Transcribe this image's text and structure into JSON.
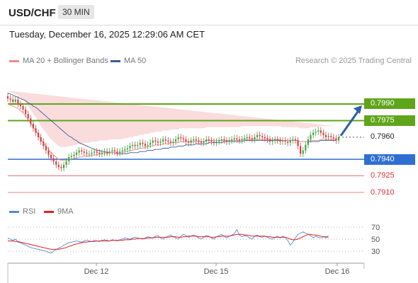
{
  "header": {
    "symbol": "USD/CHF",
    "timeframe": "30 MIN"
  },
  "datetime": "Tuesday, December 16, 2025 12:29:06 AM CET",
  "copyright": "Research © 2025 Trading Central",
  "legend": {
    "bb": {
      "label": "MA 20 + Bollinger Bands",
      "color": "#f08a8a"
    },
    "ma50": {
      "label": "MA 50",
      "color": "#3b5b9b"
    },
    "rsi": {
      "label": "RSI",
      "color": "#5b87d8"
    },
    "ma9": {
      "label": "9MA",
      "color": "#e02020"
    }
  },
  "colors": {
    "bullish": "#40a040",
    "bearish": "#d24040",
    "bb_fill": "#f8d0d0",
    "arrow": "#2b5faa"
  },
  "chart_data": [
    {
      "type": "candlestick",
      "x_tick_labels": [
        "Dec 12",
        "Dec 15",
        "Dec 16"
      ],
      "ylim": [
        0.79,
        0.8005
      ],
      "levels": [
        {
          "value": "0.7990",
          "kind": "resistance",
          "color": "#5fa51b"
        },
        {
          "value": "0.7975",
          "kind": "resistance",
          "color": "#5fa51b"
        },
        {
          "value": "0.7960",
          "kind": "current",
          "color": "#222222"
        },
        {
          "value": "0.7940",
          "kind": "support",
          "color": "#2f6fd3"
        },
        {
          "value": "0.7925",
          "kind": "support",
          "color": "#e06060"
        },
        {
          "value": "0.7910",
          "kind": "support",
          "color": "#e06060"
        }
      ],
      "close": [
        0.7995,
        0.7994,
        0.7992,
        0.7994,
        0.799,
        0.7988,
        0.7985,
        0.7981,
        0.7977,
        0.7972,
        0.7968,
        0.7964,
        0.796,
        0.7956,
        0.7952,
        0.7948,
        0.7944,
        0.7941,
        0.7938,
        0.7935,
        0.7933,
        0.7932,
        0.7935,
        0.7938,
        0.7942,
        0.7943,
        0.7944,
        0.7946,
        0.7948,
        0.7947,
        0.7946,
        0.7945,
        0.7945,
        0.7946,
        0.7947,
        0.7946,
        0.7945,
        0.7946,
        0.7947,
        0.7946,
        0.7947,
        0.7948,
        0.7947,
        0.7946,
        0.7947,
        0.7948,
        0.7949,
        0.795,
        0.7952,
        0.7953,
        0.7952,
        0.7953,
        0.7955,
        0.7954,
        0.7952,
        0.7953,
        0.7955,
        0.7957,
        0.7956,
        0.7955,
        0.7956,
        0.7958,
        0.7957,
        0.7956,
        0.7955,
        0.7956,
        0.7958,
        0.796,
        0.7959,
        0.7958,
        0.7956,
        0.7955,
        0.7957,
        0.7958,
        0.7957,
        0.7956,
        0.7955,
        0.7956,
        0.7958,
        0.7957,
        0.7956,
        0.7955,
        0.7956,
        0.7957,
        0.7958,
        0.7957,
        0.7956,
        0.7957,
        0.7958,
        0.7959,
        0.7958,
        0.7957,
        0.7958,
        0.7959,
        0.796,
        0.7959,
        0.7958,
        0.796,
        0.7962,
        0.7961,
        0.796,
        0.7959,
        0.7958,
        0.7956,
        0.7957,
        0.7958,
        0.7957,
        0.7956,
        0.7957,
        0.7956,
        0.7955,
        0.7957,
        0.7958,
        0.7957,
        0.7952,
        0.7945,
        0.7948,
        0.7953,
        0.7958,
        0.7962,
        0.7964,
        0.7965,
        0.7966,
        0.7964,
        0.7962,
        0.796,
        0.7961,
        0.796,
        0.7959,
        0.7957,
        0.796
      ],
      "ma20": [
        0.799,
        0.7989,
        0.7988,
        0.7987,
        0.7986,
        0.7984,
        0.7982,
        0.7979,
        0.7976,
        0.7973,
        0.7969,
        0.7966,
        0.7962,
        0.7958,
        0.7955,
        0.7952,
        0.7949,
        0.7946,
        0.7944,
        0.7942,
        0.794,
        0.7939,
        0.7939,
        0.7939,
        0.794,
        0.794,
        0.7941,
        0.7941,
        0.7942,
        0.7942,
        0.7943,
        0.7943,
        0.7943,
        0.7944,
        0.7944,
        0.7944,
        0.7945,
        0.7945,
        0.7945,
        0.7945,
        0.7946,
        0.7946,
        0.7946,
        0.7946,
        0.7946,
        0.7946,
        0.7947,
        0.7947,
        0.7948,
        0.7948,
        0.7949,
        0.7949,
        0.795,
        0.795,
        0.7951,
        0.7951,
        0.7952,
        0.7952,
        0.7953,
        0.7953,
        0.7953,
        0.7954,
        0.7954,
        0.7954,
        0.7955,
        0.7955,
        0.7955,
        0.7955,
        0.7956,
        0.7956,
        0.7956,
        0.7956,
        0.7956,
        0.7956,
        0.7956,
        0.7956,
        0.7956,
        0.7956,
        0.7957,
        0.7957,
        0.7957,
        0.7957,
        0.7957,
        0.7957,
        0.7957,
        0.7957,
        0.7957,
        0.7957,
        0.7957,
        0.7957,
        0.7957,
        0.7957,
        0.7958,
        0.7958,
        0.7958,
        0.7958,
        0.7958,
        0.7958,
        0.7958,
        0.7958,
        0.7958,
        0.7958,
        0.7958,
        0.7958,
        0.7958,
        0.7958,
        0.7958,
        0.7958,
        0.7957,
        0.7957,
        0.7957,
        0.7957,
        0.7957,
        0.7957,
        0.7957,
        0.7956,
        0.7956,
        0.7956,
        0.7956,
        0.7957,
        0.7957,
        0.7957,
        0.7957,
        0.7958,
        0.7958,
        0.7958,
        0.7958,
        0.7958,
        0.7958,
        0.7958
      ],
      "bb_width": 0.0012,
      "ma50": [
        0.8,
        0.7999,
        0.7998,
        0.7997,
        0.7996,
        0.7995,
        0.7994,
        0.7993,
        0.7991,
        0.799,
        0.7988,
        0.7987,
        0.7985,
        0.7983,
        0.7981,
        0.7979,
        0.7977,
        0.7975,
        0.7973,
        0.7971,
        0.7969,
        0.7967,
        0.7965,
        0.7963,
        0.7961,
        0.796,
        0.7958,
        0.7957,
        0.7955,
        0.7954,
        0.7953,
        0.7952,
        0.7951,
        0.795,
        0.7949,
        0.7948,
        0.7948,
        0.7947,
        0.7947,
        0.7946,
        0.7946,
        0.7946,
        0.7946,
        0.7945,
        0.7945,
        0.7945,
        0.7945,
        0.7945,
        0.7946,
        0.7946,
        0.7946,
        0.7946,
        0.7947,
        0.7947,
        0.7947,
        0.7948,
        0.7948,
        0.7948,
        0.7949,
        0.7949,
        0.7949,
        0.795,
        0.795,
        0.795,
        0.7951,
        0.7951,
        0.7951,
        0.7952,
        0.7952,
        0.7952,
        0.7953,
        0.7953,
        0.7953,
        0.7953,
        0.7954,
        0.7954,
        0.7954,
        0.7954,
        0.7954,
        0.7955,
        0.7955,
        0.7955,
        0.7955,
        0.7955,
        0.7955,
        0.7956,
        0.7956,
        0.7956,
        0.7956,
        0.7956,
        0.7956,
        0.7956,
        0.7956,
        0.7957,
        0.7957,
        0.7957,
        0.7957,
        0.7957,
        0.7957,
        0.7957,
        0.7957,
        0.7957,
        0.7957,
        0.7957,
        0.7957,
        0.7957,
        0.7957,
        0.7957,
        0.7957,
        0.7957,
        0.7957,
        0.7957,
        0.7957,
        0.7957,
        0.7957,
        0.7956,
        0.7956,
        0.7956,
        0.7956,
        0.7956,
        0.7956,
        0.7956,
        0.7956,
        0.7957,
        0.7957,
        0.7957,
        0.7957,
        0.7957,
        0.7957,
        0.7957
      ]
    },
    {
      "type": "line",
      "y_tick_labels": [
        "70",
        "50",
        "30"
      ],
      "ylim": [
        20,
        80
      ],
      "series": [
        {
          "name": "RSI",
          "values": [
            52,
            50,
            48,
            50,
            45,
            44,
            42,
            40,
            38,
            36,
            35,
            34,
            33,
            32,
            31,
            30,
            28,
            27,
            30,
            33,
            35,
            37,
            40,
            42,
            44,
            45,
            46,
            47,
            46,
            45,
            47,
            48,
            47,
            46,
            48,
            47,
            46,
            48,
            49,
            48,
            47,
            49,
            48,
            47,
            49,
            50,
            52,
            51,
            50,
            52,
            53,
            52,
            51,
            50,
            52,
            54,
            53,
            52,
            55,
            56,
            52,
            50,
            53,
            55,
            57,
            54,
            52,
            50,
            55,
            58,
            56,
            53,
            55,
            57,
            55,
            52,
            50,
            53,
            56,
            55,
            52,
            50,
            54,
            56,
            58,
            55,
            52,
            55,
            57,
            59,
            66,
            57,
            54,
            56,
            55,
            52,
            50,
            55,
            57,
            54,
            53,
            55,
            53,
            51,
            50,
            53,
            55,
            52,
            55,
            53,
            48,
            40,
            45,
            52,
            58,
            60,
            62,
            60,
            58,
            56,
            52,
            55,
            53,
            52,
            54,
            52,
            56
          ]
        },
        {
          "name": "9MA",
          "values": [
            47,
            47,
            47,
            46,
            46,
            45,
            44,
            43,
            42,
            41,
            40,
            39,
            38,
            37,
            36,
            35,
            34,
            33,
            33,
            33,
            33,
            34,
            35,
            36,
            38,
            39,
            41,
            42,
            43,
            44,
            45,
            45,
            46,
            46,
            46,
            47,
            47,
            47,
            47,
            47,
            47,
            48,
            48,
            48,
            48,
            48,
            49,
            49,
            49,
            50,
            50,
            51,
            51,
            51,
            51,
            52,
            52,
            52,
            53,
            53,
            53,
            53,
            53,
            53,
            54,
            54,
            54,
            53,
            53,
            54,
            54,
            55,
            55,
            55,
            55,
            54,
            54,
            54,
            54,
            54,
            53,
            53,
            54,
            54,
            55,
            55,
            55,
            55,
            56,
            57,
            58,
            58,
            58,
            57,
            57,
            56,
            55,
            55,
            55,
            55,
            55,
            55,
            54,
            54,
            53,
            53,
            53,
            53,
            53,
            53,
            52,
            50,
            49,
            49,
            50,
            52,
            54,
            56,
            58,
            58,
            57,
            57,
            56,
            55,
            54,
            54,
            53
          ]
        }
      ],
      "levels": [
        70,
        50,
        30
      ]
    }
  ]
}
